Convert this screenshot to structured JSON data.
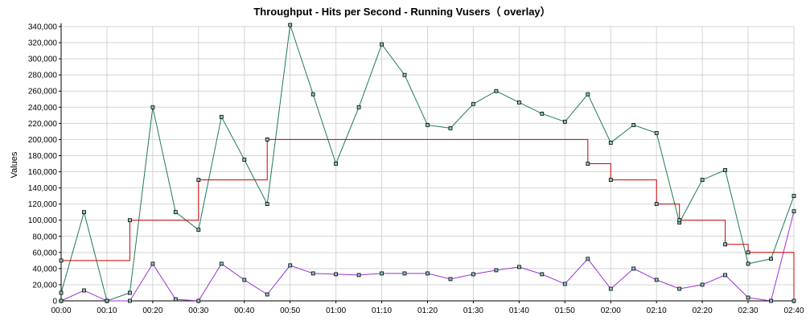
{
  "chart_data": {
    "type": "line",
    "title": "Throughput - Hits per Second - Running Vusers（ overlay）",
    "ylabel": "Values",
    "xlabel": "",
    "ylim": [
      0,
      340000
    ],
    "y_ticks": [
      0,
      20000,
      40000,
      60000,
      80000,
      100000,
      120000,
      140000,
      160000,
      180000,
      200000,
      220000,
      240000,
      260000,
      280000,
      300000,
      320000,
      340000
    ],
    "y_tick_labels": [
      "0",
      "20,000",
      "40,000",
      "60,000",
      "80,000",
      "100,000",
      "120,000",
      "140,000",
      "160,000",
      "180,000",
      "200,000",
      "220,000",
      "240,000",
      "260,000",
      "280,000",
      "300,000",
      "320,000",
      "340,000"
    ],
    "xlim": [
      0,
      160
    ],
    "x_ticks": [
      0,
      10,
      20,
      30,
      40,
      50,
      60,
      70,
      80,
      90,
      100,
      110,
      120,
      130,
      140,
      150,
      160
    ],
    "x_tick_labels": [
      "00:00",
      "00:10",
      "00:20",
      "00:30",
      "00:40",
      "00:50",
      "01:00",
      "01:10",
      "01:20",
      "01:30",
      "01:40",
      "01:50",
      "02:00",
      "02:10",
      "02:20",
      "02:30",
      "02:40"
    ],
    "grid": true,
    "series": [
      {
        "color": "#1f7a5c",
        "style": "line",
        "points": [
          [
            0,
            10000
          ],
          [
            5,
            110000
          ],
          [
            10,
            0
          ],
          [
            15,
            10000
          ],
          [
            20,
            240000
          ],
          [
            25,
            110000
          ],
          [
            30,
            88000
          ],
          [
            35,
            228000
          ],
          [
            40,
            175000
          ],
          [
            45,
            120000
          ],
          [
            50,
            342000
          ],
          [
            55,
            256000
          ],
          [
            60,
            170000
          ],
          [
            65,
            240000
          ],
          [
            70,
            318000
          ],
          [
            75,
            280000
          ],
          [
            80,
            218000
          ],
          [
            85,
            214000
          ],
          [
            90,
            244000
          ],
          [
            95,
            260000
          ],
          [
            100,
            246000
          ],
          [
            105,
            232000
          ],
          [
            110,
            222000
          ],
          [
            115,
            256000
          ],
          [
            120,
            196000
          ],
          [
            125,
            218000
          ],
          [
            130,
            208000
          ],
          [
            135,
            97000
          ],
          [
            140,
            150000
          ],
          [
            145,
            162000
          ],
          [
            150,
            46000
          ],
          [
            155,
            52000
          ],
          [
            160,
            130000
          ]
        ]
      },
      {
        "color": "#9b30d6",
        "style": "line",
        "points": [
          [
            0,
            0
          ],
          [
            5,
            13000
          ],
          [
            10,
            0
          ],
          [
            15,
            0
          ],
          [
            20,
            46000
          ],
          [
            25,
            2000
          ],
          [
            30,
            0
          ],
          [
            35,
            46000
          ],
          [
            40,
            26000
          ],
          [
            45,
            8000
          ],
          [
            50,
            44000
          ],
          [
            55,
            34000
          ],
          [
            60,
            33000
          ],
          [
            65,
            32000
          ],
          [
            70,
            34000
          ],
          [
            75,
            34000
          ],
          [
            80,
            34000
          ],
          [
            85,
            27000
          ],
          [
            90,
            33000
          ],
          [
            95,
            38000
          ],
          [
            100,
            42000
          ],
          [
            105,
            33000
          ],
          [
            110,
            21000
          ],
          [
            115,
            52000
          ],
          [
            120,
            15000
          ],
          [
            125,
            40000
          ],
          [
            130,
            26000
          ],
          [
            135,
            15000
          ],
          [
            140,
            20000
          ],
          [
            145,
            32000
          ],
          [
            150,
            4000
          ],
          [
            155,
            0
          ],
          [
            160,
            111000
          ]
        ]
      },
      {
        "color": "#cc0000",
        "style": "step",
        "markers": [
          [
            0,
            50000
          ],
          [
            15,
            100000
          ],
          [
            30,
            150000
          ],
          [
            45,
            200000
          ],
          [
            115,
            170000
          ],
          [
            120,
            150000
          ],
          [
            130,
            120000
          ],
          [
            135,
            100000
          ],
          [
            145,
            70000
          ],
          [
            150,
            60000
          ],
          [
            160,
            0
          ]
        ],
        "steps": [
          [
            0,
            50000
          ],
          [
            15,
            50000
          ],
          [
            15,
            100000
          ],
          [
            30,
            100000
          ],
          [
            30,
            150000
          ],
          [
            45,
            150000
          ],
          [
            45,
            200000
          ],
          [
            115,
            200000
          ],
          [
            115,
            170000
          ],
          [
            120,
            170000
          ],
          [
            120,
            150000
          ],
          [
            130,
            150000
          ],
          [
            130,
            120000
          ],
          [
            135,
            120000
          ],
          [
            135,
            100000
          ],
          [
            145,
            100000
          ],
          [
            145,
            70000
          ],
          [
            150,
            70000
          ],
          [
            150,
            60000
          ],
          [
            160,
            60000
          ],
          [
            160,
            0
          ]
        ]
      }
    ],
    "colors": {
      "grid": "#d4d4d4",
      "axis": "#000000",
      "marker_fill": "#88c8b8",
      "marker_stroke": "#000000"
    }
  }
}
